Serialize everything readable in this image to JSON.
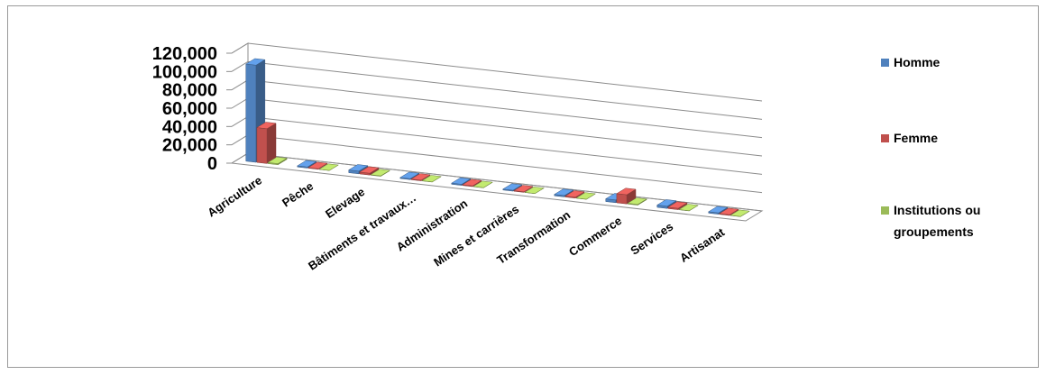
{
  "chart_data": {
    "type": "bar",
    "title": "",
    "xlabel": "",
    "ylabel": "",
    "ylim": [
      0,
      120000
    ],
    "yticks": [
      "0",
      "20,000",
      "40,000",
      "60,000",
      "80,000",
      "100,000",
      "120,000"
    ],
    "grid": true,
    "legend_position": "right",
    "categories": [
      "Agriculture",
      "Pêche",
      "Elevage",
      "Bâtiments et travaux…",
      "Administration",
      "Mines et carrières",
      "Transformation",
      "Commerce",
      "Services",
      "Artisanat"
    ],
    "series": [
      {
        "name": "Homme",
        "color": "#4f81bd",
        "values": [
          106000,
          1200,
          3000,
          1000,
          1200,
          1000,
          1500,
          3000,
          2500,
          1500
        ]
      },
      {
        "name": "Femme",
        "color": "#c0504d",
        "values": [
          38000,
          600,
          2000,
          700,
          800,
          600,
          1000,
          10000,
          1500,
          800
        ]
      },
      {
        "name": "Institutions ou groupements",
        "color": "#9bbb59",
        "values": [
          1200,
          100,
          500,
          200,
          200,
          100,
          200,
          800,
          200,
          200
        ]
      }
    ]
  }
}
